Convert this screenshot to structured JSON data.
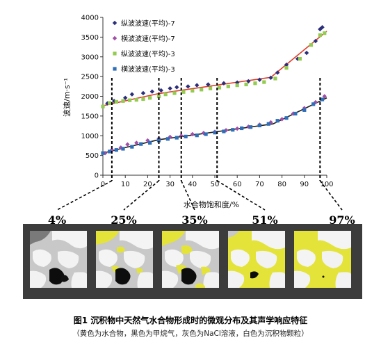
{
  "chart_data": {
    "type": "scatter",
    "xlabel": "水合物饱和度/%",
    "ylabel": "波速/m·s⁻¹",
    "xlim": [
      0,
      100
    ],
    "ylim": [
      0,
      4000
    ],
    "x_ticks": [
      0,
      10,
      20,
      30,
      40,
      50,
      60,
      70,
      80,
      90,
      100
    ],
    "y_ticks": [
      0,
      500,
      1000,
      1500,
      2000,
      2500,
      3000,
      3500,
      4000
    ],
    "legend_position": "top-left",
    "series": [
      {
        "name": "纵波波速(平均)-7",
        "marker": "diamond",
        "color": "#2b2f7a",
        "x": [
          2,
          5,
          10,
          13,
          18,
          22,
          26,
          30,
          33,
          38,
          42,
          47,
          54,
          60,
          65,
          70,
          75,
          78,
          82,
          87,
          91,
          95,
          97,
          98
        ],
        "y": [
          1820,
          1880,
          1960,
          2050,
          2080,
          2120,
          2150,
          2200,
          2230,
          2250,
          2280,
          2300,
          2330,
          2350,
          2380,
          2420,
          2470,
          2600,
          2800,
          2950,
          3100,
          3400,
          3700,
          3750
        ]
      },
      {
        "name": "横波波速(平均)-7",
        "marker": "diamond",
        "color": "#a04ea6",
        "x": [
          1,
          4,
          8,
          11,
          15,
          20,
          25,
          30,
          35,
          40,
          45,
          50,
          55,
          60,
          65,
          70,
          75,
          80,
          85,
          90,
          95,
          99
        ],
        "y": [
          560,
          640,
          700,
          780,
          820,
          880,
          930,
          970,
          1000,
          1040,
          1070,
          1100,
          1140,
          1180,
          1230,
          1280,
          1340,
          1420,
          1560,
          1700,
          1850,
          2000
        ]
      },
      {
        "name": "纵波波速(平均)-3",
        "marker": "square",
        "color": "#92cc50",
        "x": [
          0,
          3,
          6,
          9,
          12,
          15,
          18,
          21,
          25,
          28,
          32,
          36,
          40,
          44,
          48,
          52,
          56,
          60,
          64,
          68,
          72,
          77,
          82,
          88,
          93,
          97,
          99
        ],
        "y": [
          1740,
          1830,
          1860,
          1880,
          1900,
          1910,
          1930,
          1960,
          2000,
          2050,
          2080,
          2110,
          2140,
          2170,
          2200,
          2220,
          2250,
          2280,
          2300,
          2330,
          2360,
          2450,
          2720,
          2950,
          3300,
          3550,
          3600
        ]
      },
      {
        "name": "横波波速(平均)-3",
        "marker": "square",
        "color": "#2f6fb8",
        "x": [
          0,
          3,
          6,
          9,
          13,
          17,
          21,
          25,
          29,
          33,
          37,
          42,
          46,
          50,
          54,
          58,
          62,
          66,
          70,
          74,
          78,
          82,
          86,
          90,
          94,
          98
        ],
        "y": [
          560,
          600,
          640,
          670,
          720,
          790,
          820,
          880,
          920,
          950,
          980,
          1010,
          1040,
          1080,
          1110,
          1150,
          1190,
          1220,
          1260,
          1300,
          1380,
          1450,
          1560,
          1650,
          1800,
          1920
        ]
      }
    ],
    "fit_lines": [
      {
        "color": "#e03b2c",
        "points": [
          [
            0,
            1760
          ],
          [
            8,
            1860
          ],
          [
            25,
            2070
          ],
          [
            75,
            2480
          ],
          [
            100,
            3650
          ]
        ]
      },
      {
        "color": "#1c1c1c",
        "points": [
          [
            0,
            560
          ],
          [
            10,
            700
          ],
          [
            25,
            900
          ],
          [
            76,
            1300
          ],
          [
            100,
            1960
          ]
        ]
      }
    ],
    "guide_lines_x": [
      4,
      25,
      35,
      51,
      97
    ],
    "annotations": [
      "4%",
      "25%",
      "35%",
      "51%",
      "97%"
    ]
  },
  "caption": {
    "title": "图1   沉积物中天然气水合物形成时的微观分布及其声学响应特征",
    "note": "（黄色为水合物，黑色为甲烷气，灰色为NaCl溶液，白色为沉积物颗粒）"
  }
}
